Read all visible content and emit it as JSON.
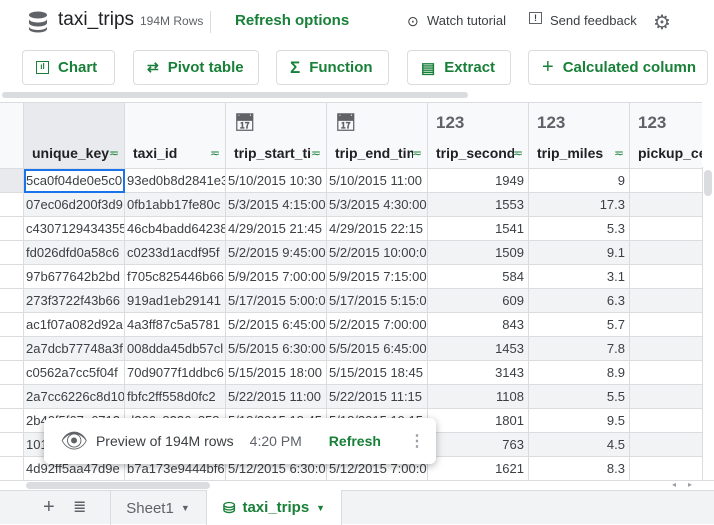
{
  "header": {
    "title": "taxi_trips",
    "row_count": "194M Rows",
    "refresh_options": "Refresh options",
    "watch_tutorial": "Watch tutorial",
    "send_feedback": "Send feedback"
  },
  "toolbar": {
    "chart": "Chart",
    "pivot_table": "Pivot table",
    "function": "Function",
    "extract": "Extract",
    "calculated_column": "Calculated column"
  },
  "columns": [
    {
      "name": "unique_key",
      "type": "text"
    },
    {
      "name": "taxi_id",
      "type": "text"
    },
    {
      "name": "trip_start_timestamp",
      "type": "date"
    },
    {
      "name": "trip_end_timestamp",
      "type": "date"
    },
    {
      "name": "trip_seconds",
      "type": "number"
    },
    {
      "name": "trip_miles",
      "type": "number"
    },
    {
      "name": "pickup_census_tract",
      "type": "number"
    }
  ],
  "type_icons": {
    "date": "calendar-icon",
    "number": "123"
  },
  "rows": [
    [
      "5ca0f04de0e5c0",
      "93ed0b8d2841e3",
      "5/10/2015 10:30",
      "5/10/2015 11:00",
      "1949",
      "9",
      ""
    ],
    [
      "07ec06d200f3d9",
      "0fb1abb17fe80c",
      "5/3/2015 4:15:00",
      "5/3/2015 4:30:00",
      "1553",
      "17.3",
      ""
    ],
    [
      "c4307129434355",
      "46cb4badd64238",
      "4/29/2015 21:45",
      "4/29/2015 22:15",
      "1541",
      "5.3",
      ""
    ],
    [
      "fd026dfd0a58c6",
      "c0233d1acdf95f",
      "5/2/2015 9:45:00",
      "5/2/2015 10:00:0",
      "1509",
      "9.1",
      ""
    ],
    [
      "97b677642b2bd",
      "f705c825446b66",
      "5/9/2015 7:00:00",
      "5/9/2015 7:15:00",
      "584",
      "3.1",
      ""
    ],
    [
      "273f3722f43b66",
      "919ad1eb29141",
      "5/17/2015 5:00:0",
      "5/17/2015 5:15:0",
      "609",
      "6.3",
      ""
    ],
    [
      "ac1f07a082d92a",
      "4a3ff87c5a5781",
      "5/2/2015 6:45:00",
      "5/2/2015 7:00:00",
      "843",
      "5.7",
      ""
    ],
    [
      "2a7dcb77748a3f",
      "008dda45db57cl",
      "5/5/2015 6:30:00",
      "5/5/2015 6:45:00",
      "1453",
      "7.8",
      ""
    ],
    [
      "c0562a7cc5f04f",
      "70d9077f1ddbc6",
      "5/15/2015 18:00",
      "5/15/2015 18:45",
      "3143",
      "8.9",
      ""
    ],
    [
      "2a7cc6226c8d10",
      "fbfc2ff558d0fc2",
      "5/22/2015 11:00",
      "5/22/2015 11:15",
      "1108",
      "5.5",
      ""
    ],
    [
      "2b40f5f67e6712",
      "d266c8226c858",
      "5/18/2015 18:45",
      "5/18/2015 19:15",
      "1801",
      "9.5",
      ""
    ],
    [
      "101",
      "",
      "",
      "",
      "763",
      "4.5",
      ""
    ],
    [
      "4d92ff5aa47d9e",
      "b7a173e9444bf6",
      "5/12/2015 6:30:0",
      "5/12/2015 7:00:0",
      "1621",
      "8.3",
      ""
    ]
  ],
  "popup": {
    "text": "Preview of 194M rows",
    "time": "4:20 PM",
    "refresh": "Refresh"
  },
  "tabs": [
    {
      "label": "Sheet1",
      "active": false
    },
    {
      "label": "taxi_trips",
      "active": true
    }
  ],
  "colors": {
    "accent": "#188038",
    "selection": "#1a73e8"
  }
}
